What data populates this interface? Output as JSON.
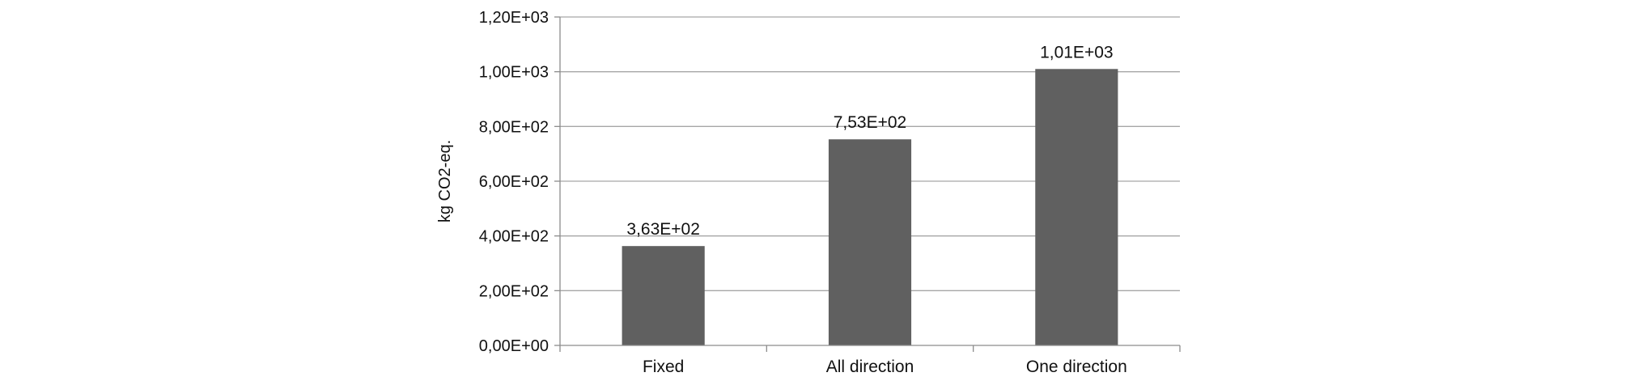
{
  "chart_data": {
    "type": "bar",
    "title": "",
    "xlabel": "",
    "ylabel": "kg CO2-eq.",
    "ylim": [
      0,
      1200
    ],
    "yticks": [
      0,
      200,
      400,
      600,
      800,
      1000,
      1200
    ],
    "ytick_labels": [
      "0,00E+00",
      "2,00E+02",
      "4,00E+02",
      "6,00E+02",
      "8,00E+02",
      "1,00E+03",
      "1,20E+03"
    ],
    "categories": [
      "Fixed",
      "All direction",
      "One direction"
    ],
    "values": [
      363,
      753,
      1010
    ],
    "value_labels": [
      "3,63E+02",
      "7,53E+02",
      "1,01E+03"
    ],
    "grid": true,
    "legend": "none",
    "bar_color": "#606060",
    "grid_color": "#a6a6a6",
    "axis_color": "#8c8c8c"
  }
}
